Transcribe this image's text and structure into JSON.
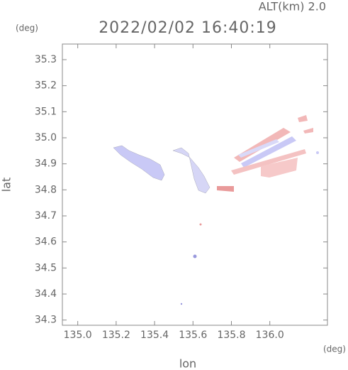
{
  "chart_data": {
    "type": "map",
    "title": "2022/02/02 16:40:19",
    "subtitle": "ALT(km) 2.0",
    "x_label": "lon",
    "y_label": "lat",
    "x_unit": "(deg)",
    "y_unit": "(deg)",
    "xlim": [
      134.92,
      136.3
    ],
    "ylim": [
      34.28,
      35.36
    ],
    "xticks": [
      {
        "value": 135,
        "label": "135.0"
      },
      135.2,
      135.4,
      135.6,
      135.8,
      {
        "value": 136,
        "label": "136.0"
      }
    ],
    "yticks": [
      34.3,
      34.4,
      34.5,
      34.6,
      34.7,
      34.8,
      34.9,
      {
        "value": 35,
        "label": "35.0"
      },
      35.1,
      35.2,
      35.3
    ]
  }
}
